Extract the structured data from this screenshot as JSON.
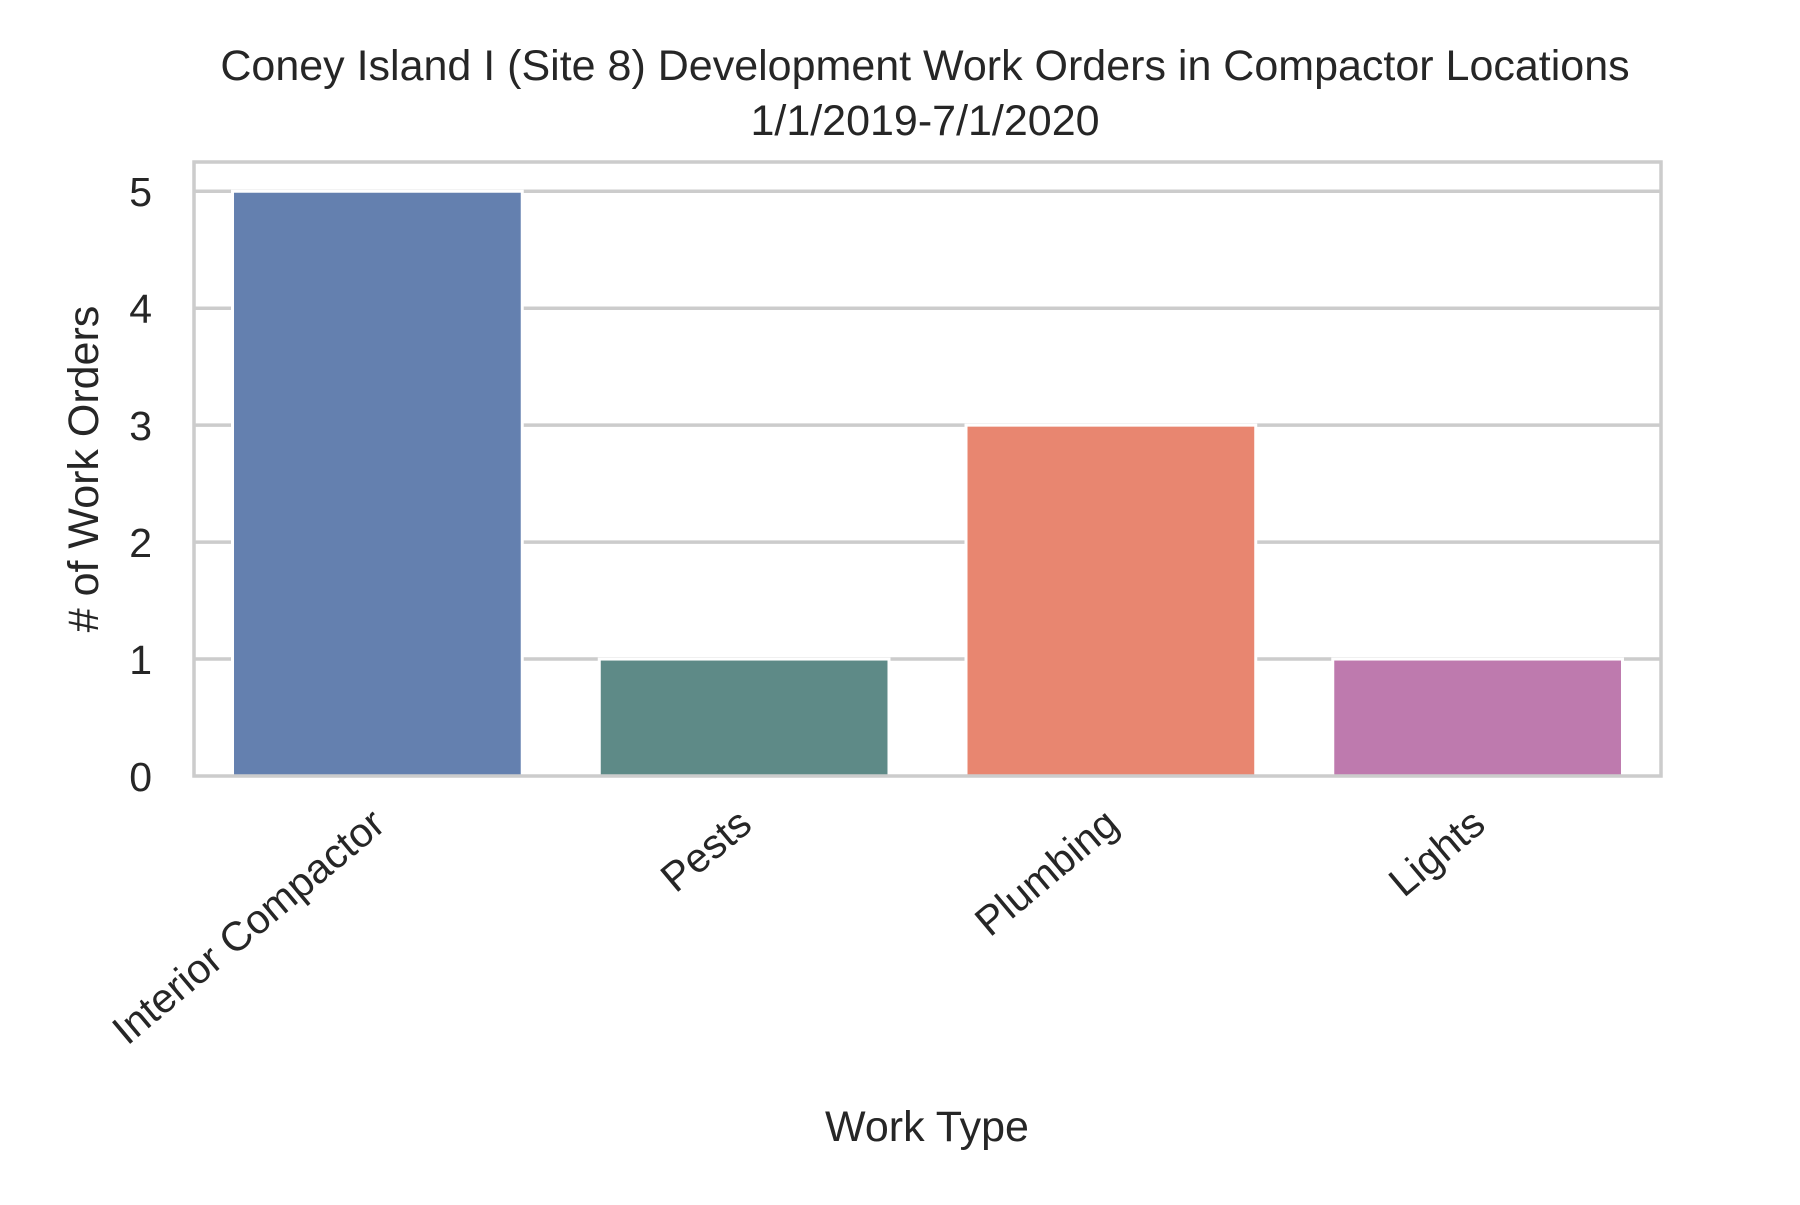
{
  "chart_data": {
    "type": "bar",
    "title": "Coney Island I (Site 8) Development Work Orders in Compactor Locations",
    "subtitle": "1/1/2019-7/1/2020",
    "xlabel": "Work Type",
    "ylabel": "# of Work Orders",
    "categories": [
      "Interior Compactor",
      "Pests",
      "Plumbing",
      "Lights"
    ],
    "values": [
      5,
      1,
      3,
      1
    ],
    "colors": [
      "#6480af",
      "#5e8a87",
      "#e88670",
      "#be7aae"
    ],
    "ylim": [
      0,
      5.25
    ],
    "yticks": [
      "0",
      "1",
      "2",
      "3",
      "4",
      "5"
    ],
    "grid": true,
    "legend": "none"
  }
}
